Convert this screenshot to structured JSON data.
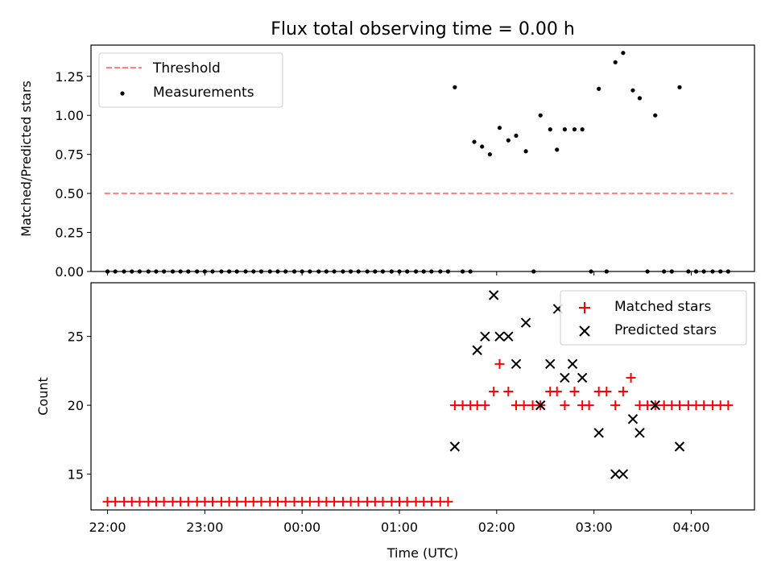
{
  "title": "Flux total observing time = 0.00 h",
  "chart_data": [
    {
      "type": "scatter",
      "ylabel": "Matched/Predicted stars",
      "xlim": [
        -0.17,
        6.65
      ],
      "ylim": [
        0,
        1.45
      ],
      "yticks": [
        0.0,
        0.25,
        0.5,
        0.75,
        1.0,
        1.25
      ],
      "ytick_labels": [
        "0.00",
        "0.25",
        "0.50",
        "0.75",
        "1.00",
        "1.25"
      ],
      "legend_position": "upper-left",
      "threshold": {
        "name": "Threshold",
        "y": 0.5,
        "x_range": [
          -0.03,
          6.43
        ],
        "color": "#ff7f7f",
        "style": "dashed"
      },
      "series": [
        {
          "name": "Measurements",
          "marker": "dot",
          "color": "#000000",
          "points": [
            [
              0.0,
              0
            ],
            [
              0.08,
              0
            ],
            [
              0.17,
              0
            ],
            [
              0.25,
              0
            ],
            [
              0.33,
              0
            ],
            [
              0.42,
              0
            ],
            [
              0.5,
              0
            ],
            [
              0.58,
              0
            ],
            [
              0.67,
              0
            ],
            [
              0.75,
              0
            ],
            [
              0.83,
              0
            ],
            [
              0.92,
              0
            ],
            [
              1.0,
              0
            ],
            [
              1.08,
              0
            ],
            [
              1.17,
              0
            ],
            [
              1.25,
              0
            ],
            [
              1.33,
              0
            ],
            [
              1.42,
              0
            ],
            [
              1.5,
              0
            ],
            [
              1.58,
              0
            ],
            [
              1.67,
              0
            ],
            [
              1.75,
              0
            ],
            [
              1.83,
              0
            ],
            [
              1.92,
              0
            ],
            [
              2.0,
              0
            ],
            [
              2.08,
              0
            ],
            [
              2.17,
              0
            ],
            [
              2.25,
              0
            ],
            [
              2.33,
              0
            ],
            [
              2.42,
              0
            ],
            [
              2.5,
              0
            ],
            [
              2.58,
              0
            ],
            [
              2.67,
              0
            ],
            [
              2.75,
              0
            ],
            [
              2.83,
              0
            ],
            [
              2.92,
              0
            ],
            [
              3.0,
              0
            ],
            [
              3.08,
              0
            ],
            [
              3.17,
              0
            ],
            [
              3.25,
              0
            ],
            [
              3.33,
              0
            ],
            [
              3.42,
              0
            ],
            [
              3.5,
              0
            ],
            [
              3.57,
              1.18
            ],
            [
              3.65,
              0
            ],
            [
              3.73,
              0
            ],
            [
              3.77,
              0.83
            ],
            [
              3.85,
              0.8
            ],
            [
              3.93,
              0.75
            ],
            [
              4.03,
              0.92
            ],
            [
              4.12,
              0.84
            ],
            [
              4.2,
              0.87
            ],
            [
              4.3,
              0.77
            ],
            [
              4.38,
              0
            ],
            [
              4.45,
              1.0
            ],
            [
              4.55,
              0.91
            ],
            [
              4.62,
              0.78
            ],
            [
              4.7,
              0.91
            ],
            [
              4.8,
              0.91
            ],
            [
              4.88,
              0.91
            ],
            [
              4.97,
              0
            ],
            [
              5.05,
              1.17
            ],
            [
              5.13,
              0
            ],
            [
              5.22,
              1.34
            ],
            [
              5.3,
              1.4
            ],
            [
              5.4,
              1.16
            ],
            [
              5.47,
              1.11
            ],
            [
              5.55,
              0
            ],
            [
              5.63,
              1.0
            ],
            [
              5.72,
              0
            ],
            [
              5.8,
              0
            ],
            [
              5.88,
              1.18
            ],
            [
              5.97,
              0
            ],
            [
              6.05,
              0
            ],
            [
              6.13,
              0
            ],
            [
              6.22,
              0
            ],
            [
              6.3,
              0
            ],
            [
              6.38,
              0
            ]
          ]
        }
      ]
    },
    {
      "type": "scatter",
      "xlabel": "Time (UTC)",
      "ylabel": "Count",
      "xlim": [
        -0.17,
        6.65
      ],
      "ylim": [
        12.4,
        28.9
      ],
      "xticks": [
        0,
        1,
        2,
        3,
        4,
        5,
        6
      ],
      "xtick_labels": [
        "22:00",
        "23:00",
        "00:00",
        "01:00",
        "02:00",
        "03:00",
        "04:00"
      ],
      "yticks": [
        15,
        20,
        25
      ],
      "ytick_labels": [
        "15",
        "20",
        "25"
      ],
      "legend_position": "upper-right",
      "series": [
        {
          "name": "Matched stars",
          "marker": "plus",
          "color": "#ff0000",
          "points": [
            [
              0.0,
              13
            ],
            [
              0.08,
              13
            ],
            [
              0.17,
              13
            ],
            [
              0.25,
              13
            ],
            [
              0.33,
              13
            ],
            [
              0.42,
              13
            ],
            [
              0.5,
              13
            ],
            [
              0.58,
              13
            ],
            [
              0.67,
              13
            ],
            [
              0.75,
              13
            ],
            [
              0.83,
              13
            ],
            [
              0.92,
              13
            ],
            [
              1.0,
              13
            ],
            [
              1.08,
              13
            ],
            [
              1.17,
              13
            ],
            [
              1.25,
              13
            ],
            [
              1.33,
              13
            ],
            [
              1.42,
              13
            ],
            [
              1.5,
              13
            ],
            [
              1.58,
              13
            ],
            [
              1.67,
              13
            ],
            [
              1.75,
              13
            ],
            [
              1.83,
              13
            ],
            [
              1.92,
              13
            ],
            [
              2.0,
              13
            ],
            [
              2.08,
              13
            ],
            [
              2.17,
              13
            ],
            [
              2.25,
              13
            ],
            [
              2.33,
              13
            ],
            [
              2.42,
              13
            ],
            [
              2.5,
              13
            ],
            [
              2.58,
              13
            ],
            [
              2.67,
              13
            ],
            [
              2.75,
              13
            ],
            [
              2.83,
              13
            ],
            [
              2.92,
              13
            ],
            [
              3.0,
              13
            ],
            [
              3.08,
              13
            ],
            [
              3.17,
              13
            ],
            [
              3.25,
              13
            ],
            [
              3.33,
              13
            ],
            [
              3.42,
              13
            ],
            [
              3.5,
              13
            ],
            [
              3.57,
              20
            ],
            [
              3.65,
              20
            ],
            [
              3.73,
              20
            ],
            [
              3.8,
              20
            ],
            [
              3.88,
              20
            ],
            [
              3.97,
              21
            ],
            [
              4.03,
              23
            ],
            [
              4.12,
              21
            ],
            [
              4.2,
              20
            ],
            [
              4.28,
              20
            ],
            [
              4.37,
              20
            ],
            [
              4.45,
              20
            ],
            [
              4.55,
              21
            ],
            [
              4.62,
              21
            ],
            [
              4.7,
              20
            ],
            [
              4.8,
              21
            ],
            [
              4.88,
              20
            ],
            [
              4.95,
              20
            ],
            [
              5.05,
              21
            ],
            [
              5.13,
              21
            ],
            [
              5.22,
              20
            ],
            [
              5.3,
              21
            ],
            [
              5.38,
              22
            ],
            [
              5.47,
              20
            ],
            [
              5.55,
              20
            ],
            [
              5.63,
              20
            ],
            [
              5.72,
              20
            ],
            [
              5.8,
              20
            ],
            [
              5.88,
              20
            ],
            [
              5.97,
              20
            ],
            [
              6.05,
              20
            ],
            [
              6.13,
              20
            ],
            [
              6.22,
              20
            ],
            [
              6.3,
              20
            ],
            [
              6.38,
              20
            ]
          ]
        },
        {
          "name": "Predicted stars",
          "marker": "x",
          "color": "#000000",
          "points": [
            [
              3.57,
              17
            ],
            [
              3.8,
              24
            ],
            [
              3.88,
              25
            ],
            [
              3.97,
              28
            ],
            [
              4.03,
              25
            ],
            [
              4.12,
              25
            ],
            [
              4.2,
              23
            ],
            [
              4.3,
              26
            ],
            [
              4.45,
              20
            ],
            [
              4.55,
              23
            ],
            [
              4.63,
              27
            ],
            [
              4.7,
              22
            ],
            [
              4.78,
              23
            ],
            [
              4.88,
              22
            ],
            [
              5.05,
              18
            ],
            [
              5.22,
              15
            ],
            [
              5.3,
              15
            ],
            [
              5.4,
              19
            ],
            [
              5.47,
              18
            ],
            [
              5.63,
              20
            ],
            [
              5.88,
              17
            ]
          ]
        }
      ]
    }
  ]
}
